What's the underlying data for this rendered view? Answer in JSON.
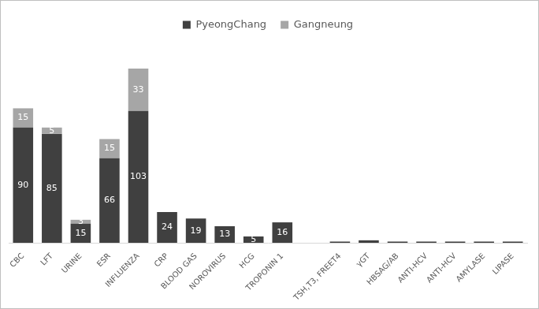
{
  "chart_data": {
    "type": "bar",
    "stacked": true,
    "legend": "top",
    "grid": false,
    "tick_labels": "x",
    "data_labels": true,
    "categories": [
      "CBC",
      "LFT",
      "URINE",
      "ESR",
      "INFLUENZA",
      "CRP",
      "BLOOD GAS",
      "NOROVIRUS",
      "HCG",
      "TROPONIN 1",
      null,
      "TSH,T3, FREET4",
      "γGT",
      "HBSAG/AB",
      "ANTI-HCV",
      "ANTI-HCV",
      "AMYLASE",
      "LIPASE"
    ],
    "ylim": [
      0,
      160
    ],
    "series": [
      {
        "name": "PyeongChang",
        "color": "#404040",
        "values": [
          90,
          85,
          15,
          66,
          103,
          24,
          19,
          13,
          5,
          16,
          null,
          1,
          2,
          1,
          1,
          1,
          1,
          1
        ],
        "value_labels": [
          "90",
          "85",
          "15",
          "66",
          "103",
          "24",
          "19",
          "13",
          "5",
          "16",
          null,
          null,
          null,
          null,
          null,
          null,
          null,
          null
        ]
      },
      {
        "name": "Gangneung",
        "color": "#a6a6a6",
        "values": [
          15,
          5,
          3,
          15,
          33,
          null,
          null,
          null,
          null,
          null,
          null,
          null,
          null,
          null,
          null,
          null,
          null,
          null
        ],
        "value_labels": [
          "15",
          "5",
          "3",
          "15",
          "33",
          null,
          null,
          null,
          null,
          null,
          null,
          null,
          null,
          null,
          null,
          null,
          null,
          null
        ]
      }
    ]
  }
}
